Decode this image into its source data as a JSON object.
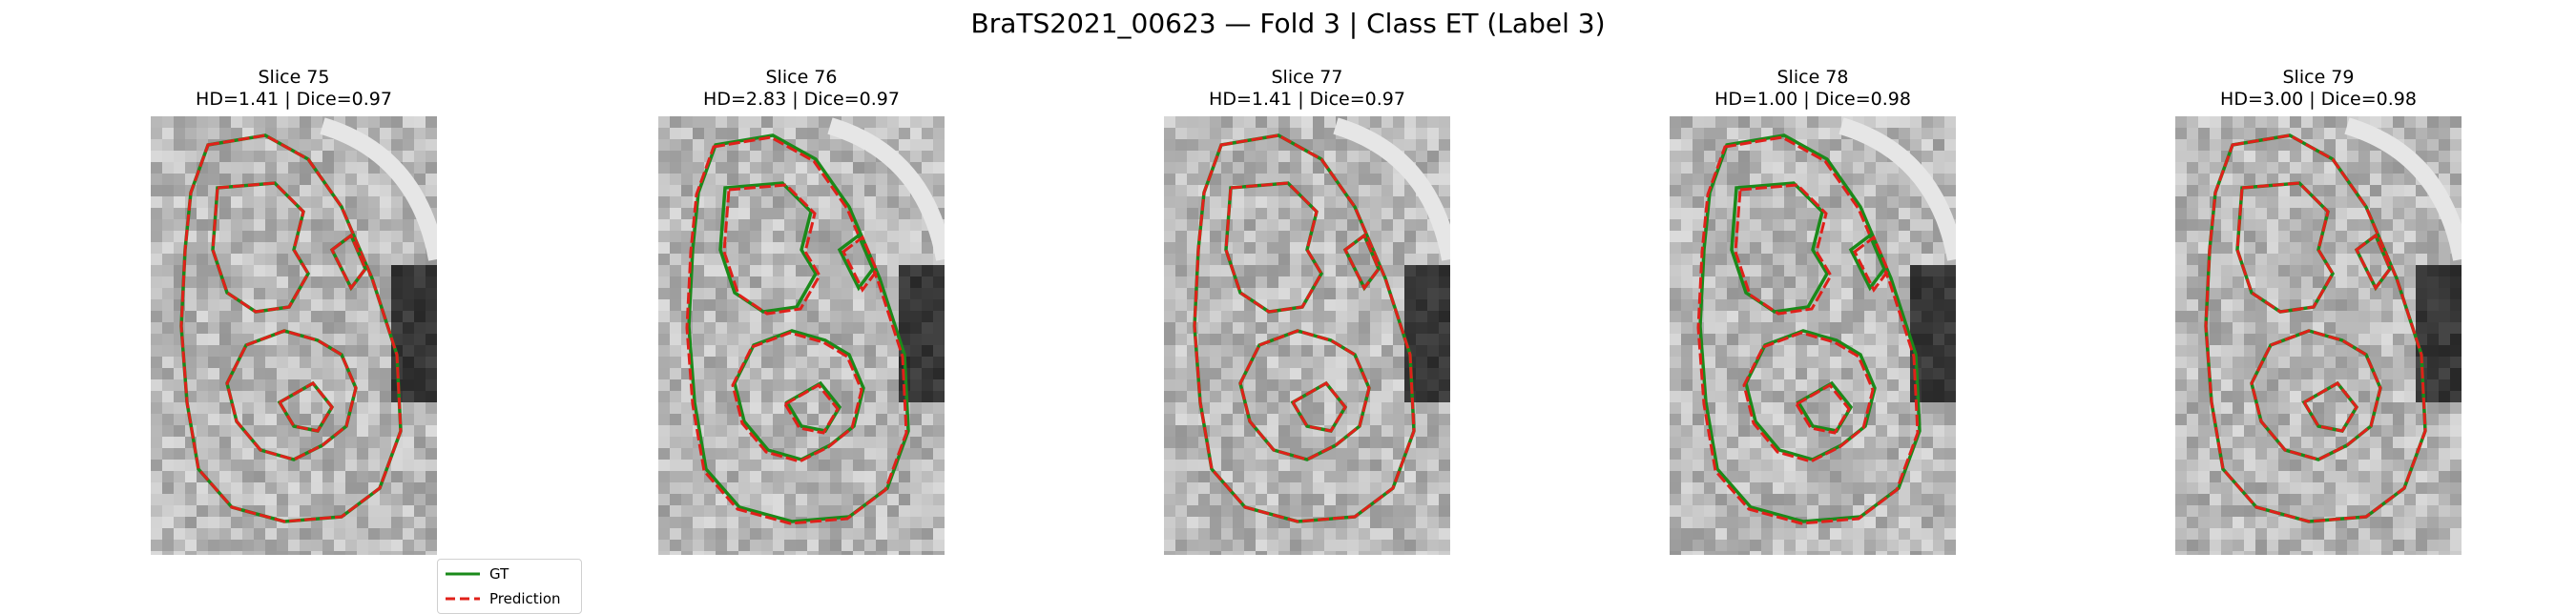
{
  "figure": {
    "title": "BraTS2021_00623 — Fold 3 | Class ET (Label 3)"
  },
  "panels": [
    {
      "title": "Slice 75",
      "metrics": "HD=1.41 | Dice=0.97"
    },
    {
      "title": "Slice 76",
      "metrics": "HD=2.83 | Dice=0.97"
    },
    {
      "title": "Slice 77",
      "metrics": "HD=1.41 | Dice=0.97"
    },
    {
      "title": "Slice 78",
      "metrics": "HD=1.00 | Dice=0.98"
    },
    {
      "title": "Slice 79",
      "metrics": "HD=3.00 | Dice=0.98"
    }
  ],
  "legend": {
    "gt_label": "GT",
    "pred_label": "Prediction"
  },
  "colors": {
    "gt": "#1a8a1a",
    "prediction": "#e0201a"
  }
}
